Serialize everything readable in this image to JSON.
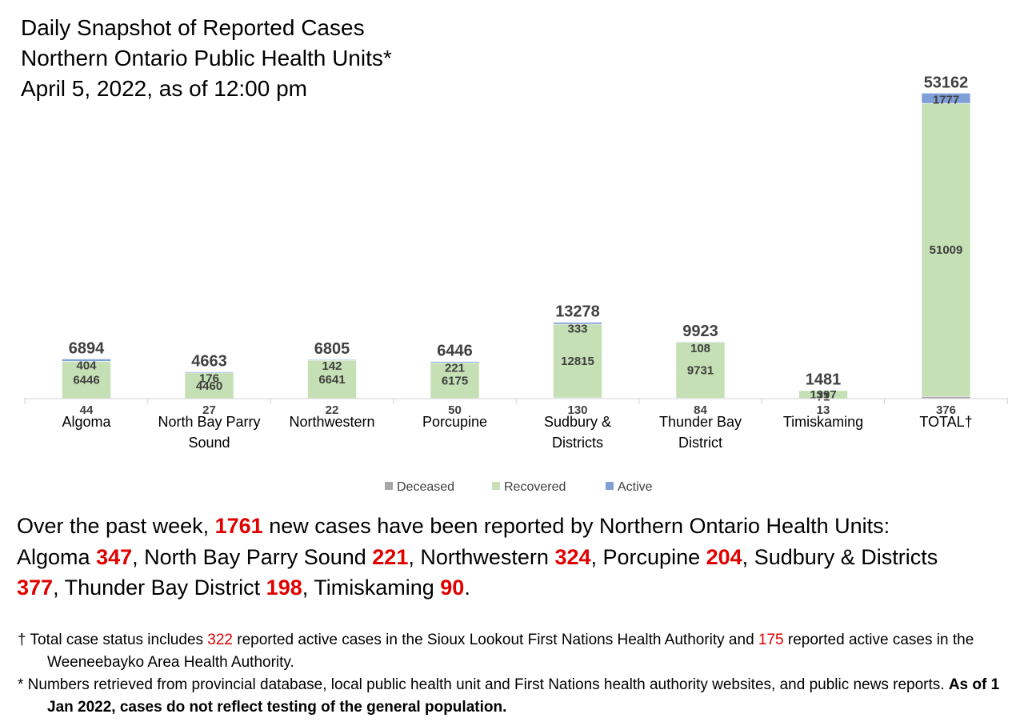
{
  "title": {
    "line1": "Daily Snapshot of Reported Cases",
    "line2": "Northern Ontario Public Health Units*",
    "line3": "April 5, 2022, as of 12:00 pm"
  },
  "colors": {
    "deceased": "#a6a6a6",
    "recovered": "#c5e0b4",
    "active": "#7f9fd8",
    "highlight": "#e00000"
  },
  "chart_data": {
    "type": "bar",
    "stacked": true,
    "categories": [
      [
        "Algoma"
      ],
      [
        "North Bay Parry",
        "Sound"
      ],
      [
        "Northwestern"
      ],
      [
        "Porcupine"
      ],
      [
        "Sudbury &",
        "Districts"
      ],
      [
        "Thunder Bay",
        "District"
      ],
      [
        "Timiskaming"
      ],
      [
        "TOTAL†"
      ]
    ],
    "series": [
      {
        "name": "Deceased",
        "values": [
          44,
          27,
          22,
          50,
          130,
          84,
          13,
          376
        ]
      },
      {
        "name": "Recovered",
        "values": [
          6446,
          4460,
          6641,
          6175,
          12815,
          9731,
          1397,
          51009
        ]
      },
      {
        "name": "Active",
        "values": [
          404,
          176,
          142,
          221,
          333,
          108,
          71,
          1777
        ]
      }
    ],
    "totals": [
      6894,
      4663,
      6805,
      6446,
      13278,
      9923,
      1481,
      53162
    ],
    "ylim": [
      0,
      56000
    ],
    "grid": false,
    "legend_position": "bottom"
  },
  "summary": {
    "intro": "Over the past week, ",
    "total": "1761",
    "lead": " new cases have been reported by Northern Ontario Health Units:",
    "items": [
      {
        "name": "Algoma ",
        "value": "347",
        "sep": ", "
      },
      {
        "name": "North Bay Parry Sound ",
        "value": "221",
        "sep": ", "
      },
      {
        "name": "Northwestern ",
        "value": "324",
        "sep": ", "
      },
      {
        "name": "Porcupine ",
        "value": "204",
        "sep": ", "
      },
      {
        "name": "Sudbury & Districts ",
        "value": "377",
        "sep": ", "
      },
      {
        "name": "Thunder Bay District ",
        "value": "198",
        "sep": ", "
      },
      {
        "name": "Timiskaming ",
        "value": "90",
        "sep": "."
      }
    ]
  },
  "notes": {
    "dagger_part1": "† Total case status includes ",
    "dagger_num1": "322",
    "dagger_part2": " reported active cases in the Sioux Lookout First Nations Health Authority and ",
    "dagger_num2": "175",
    "dagger_part3": " reported active cases in the Weeneebayko Area Health Authority.",
    "star_part1": "* Numbers retrieved from provincial database, local public health unit and First Nations health authority websites, and public news reports. ",
    "star_bold": "As of 1 Jan 2022, cases do not reflect testing of the general population."
  }
}
